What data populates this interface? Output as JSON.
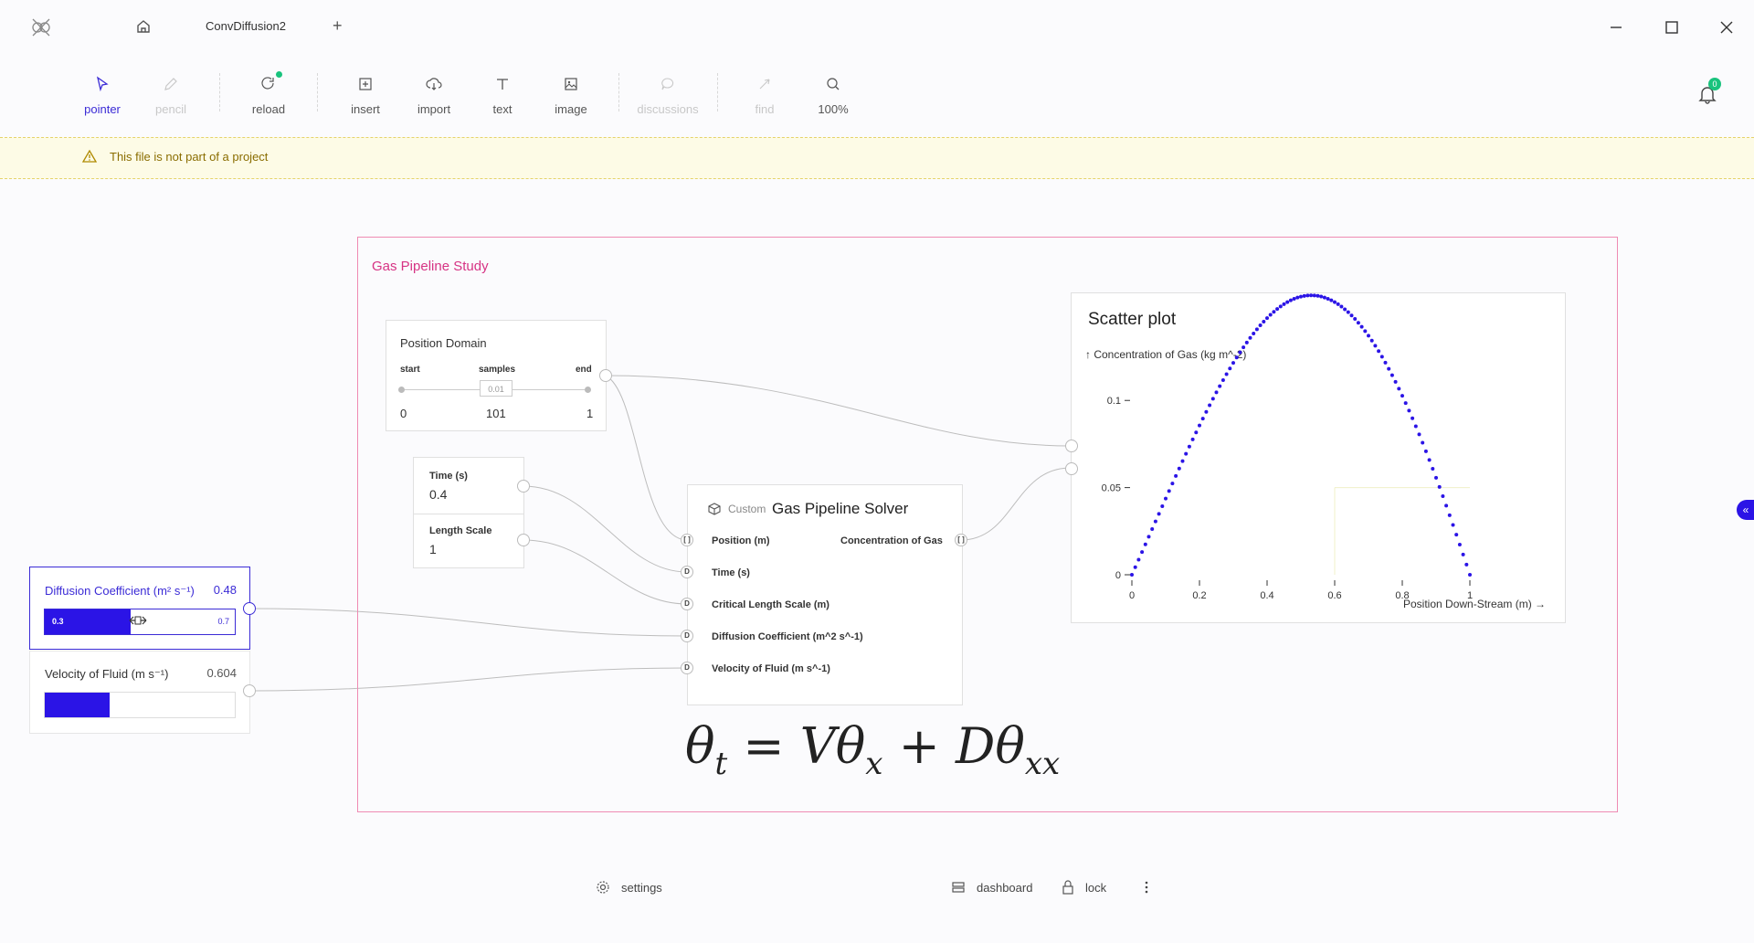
{
  "window": {
    "title": "ConvDiffusion2",
    "add_tab": "+"
  },
  "toolbar": {
    "items": [
      {
        "label": "pointer",
        "icon": "pointer-icon",
        "state": "active"
      },
      {
        "label": "pencil",
        "icon": "pencil-icon",
        "state": "disabled"
      },
      {
        "label": "reload",
        "icon": "reload-icon",
        "state": "normal"
      },
      {
        "label": "insert",
        "icon": "insert-icon",
        "state": "normal"
      },
      {
        "label": "import",
        "icon": "import-icon",
        "state": "normal"
      },
      {
        "label": "text",
        "icon": "text-icon",
        "state": "normal"
      },
      {
        "label": "image",
        "icon": "image-icon",
        "state": "normal"
      },
      {
        "label": "discussions",
        "icon": "discussions-icon",
        "state": "disabled"
      },
      {
        "label": "find",
        "icon": "find-icon",
        "state": "disabled"
      },
      {
        "label": "100%",
        "icon": "zoom-icon",
        "state": "normal"
      }
    ],
    "notifications_count": "0"
  },
  "banner": {
    "text": "This file is not part of a project"
  },
  "canvas": {
    "group_title": "Gas Pipeline Study",
    "position_domain": {
      "title": "Position Domain",
      "start_label": "start",
      "samples_label": "samples",
      "end_label": "end",
      "step": "0.01",
      "start": "0",
      "samples": "101",
      "end": "1"
    },
    "time": {
      "label": "Time (s)",
      "value": "0.4"
    },
    "length_scale": {
      "label": "Length Scale",
      "value": "1"
    },
    "solver": {
      "tag": "Custom",
      "title": "Gas Pipeline Solver",
      "output_label": "Concentration of Gas",
      "inputs": [
        {
          "port": "[ ]",
          "label": "Position (m)"
        },
        {
          "port": "D",
          "label": "Time (s)"
        },
        {
          "port": "D",
          "label": "Critical Length Scale (m)"
        },
        {
          "port": "D",
          "label": "Diffusion Coefficient (m^2 s^-1)"
        },
        {
          "port": "D",
          "label": "Velocity of Fluid (m s^-1)"
        }
      ],
      "output_port": "[ ]"
    },
    "diffusion": {
      "label": "Diffusion Coefficient (m² s⁻¹)",
      "value": "0.48",
      "min": "0.3",
      "max": "0.7",
      "fraction": 0.45
    },
    "velocity": {
      "label": "Velocity of Fluid (m s⁻¹)",
      "value": "0.604",
      "fraction": 0.34
    },
    "equation": "θt = Vθx + Dθxx"
  },
  "chart_data": {
    "type": "scatter",
    "title": "Scatter plot",
    "ylabel": "↑ Concentration of Gas (kg m^-2)",
    "xlabel": "Position Down-Stream (m) →",
    "xlim": [
      0,
      1
    ],
    "ylim": [
      0,
      0.13
    ],
    "xticks": [
      "0",
      "0.2",
      "0.4",
      "0.6",
      "0.8",
      "1"
    ],
    "yticks": [
      "0",
      "0.05",
      "0.1"
    ],
    "color": "#2b14e6",
    "model": "y = 0.1372 * sin(pi*x) * exp(0.302*x)",
    "x_samples": 101
  },
  "bottom": {
    "settings": "settings",
    "dashboard": "dashboard",
    "lock": "lock"
  }
}
